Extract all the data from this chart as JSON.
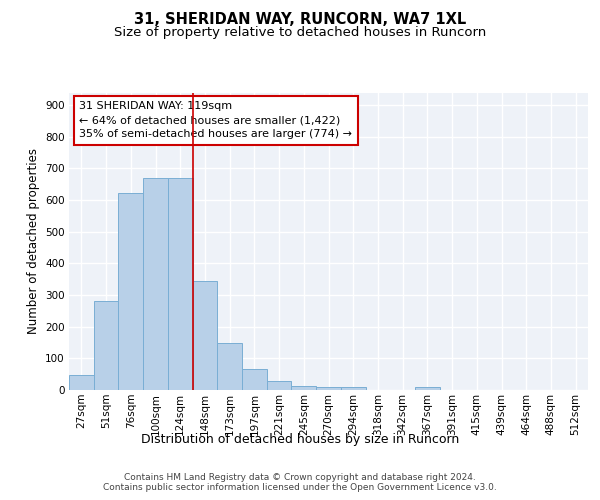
{
  "title_line1": "31, SHERIDAN WAY, RUNCORN, WA7 1XL",
  "title_line2": "Size of property relative to detached houses in Runcorn",
  "xlabel": "Distribution of detached houses by size in Runcorn",
  "ylabel": "Number of detached properties",
  "bar_color": "#b8d0e8",
  "bar_edge_color": "#7aaed4",
  "categories": [
    "27sqm",
    "51sqm",
    "76sqm",
    "100sqm",
    "124sqm",
    "148sqm",
    "173sqm",
    "197sqm",
    "221sqm",
    "245sqm",
    "270sqm",
    "294sqm",
    "318sqm",
    "342sqm",
    "367sqm",
    "391sqm",
    "415sqm",
    "439sqm",
    "464sqm",
    "488sqm",
    "512sqm"
  ],
  "values": [
    46,
    280,
    622,
    670,
    670,
    345,
    147,
    66,
    30,
    13,
    10,
    10,
    0,
    0,
    8,
    0,
    0,
    0,
    0,
    0,
    0
  ],
  "vline_x": 4.5,
  "vline_color": "#cc0000",
  "annotation_text": "31 SHERIDAN WAY: 119sqm\n← 64% of detached houses are smaller (1,422)\n35% of semi-detached houses are larger (774) →",
  "annotation_box_color": "#ffffff",
  "annotation_box_edge_color": "#cc0000",
  "footer_text": "Contains HM Land Registry data © Crown copyright and database right 2024.\nContains public sector information licensed under the Open Government Licence v3.0.",
  "ylim": [
    0,
    940
  ],
  "yticks": [
    0,
    100,
    200,
    300,
    400,
    500,
    600,
    700,
    800,
    900
  ],
  "background_color": "#eef2f8",
  "fig_bg_color": "#ffffff",
  "grid_color": "#ffffff",
  "title_fontsize": 10.5,
  "subtitle_fontsize": 9.5,
  "tick_fontsize": 7.5,
  "ylabel_fontsize": 8.5,
  "xlabel_fontsize": 9,
  "footer_fontsize": 6.5,
  "annotation_fontsize": 8
}
